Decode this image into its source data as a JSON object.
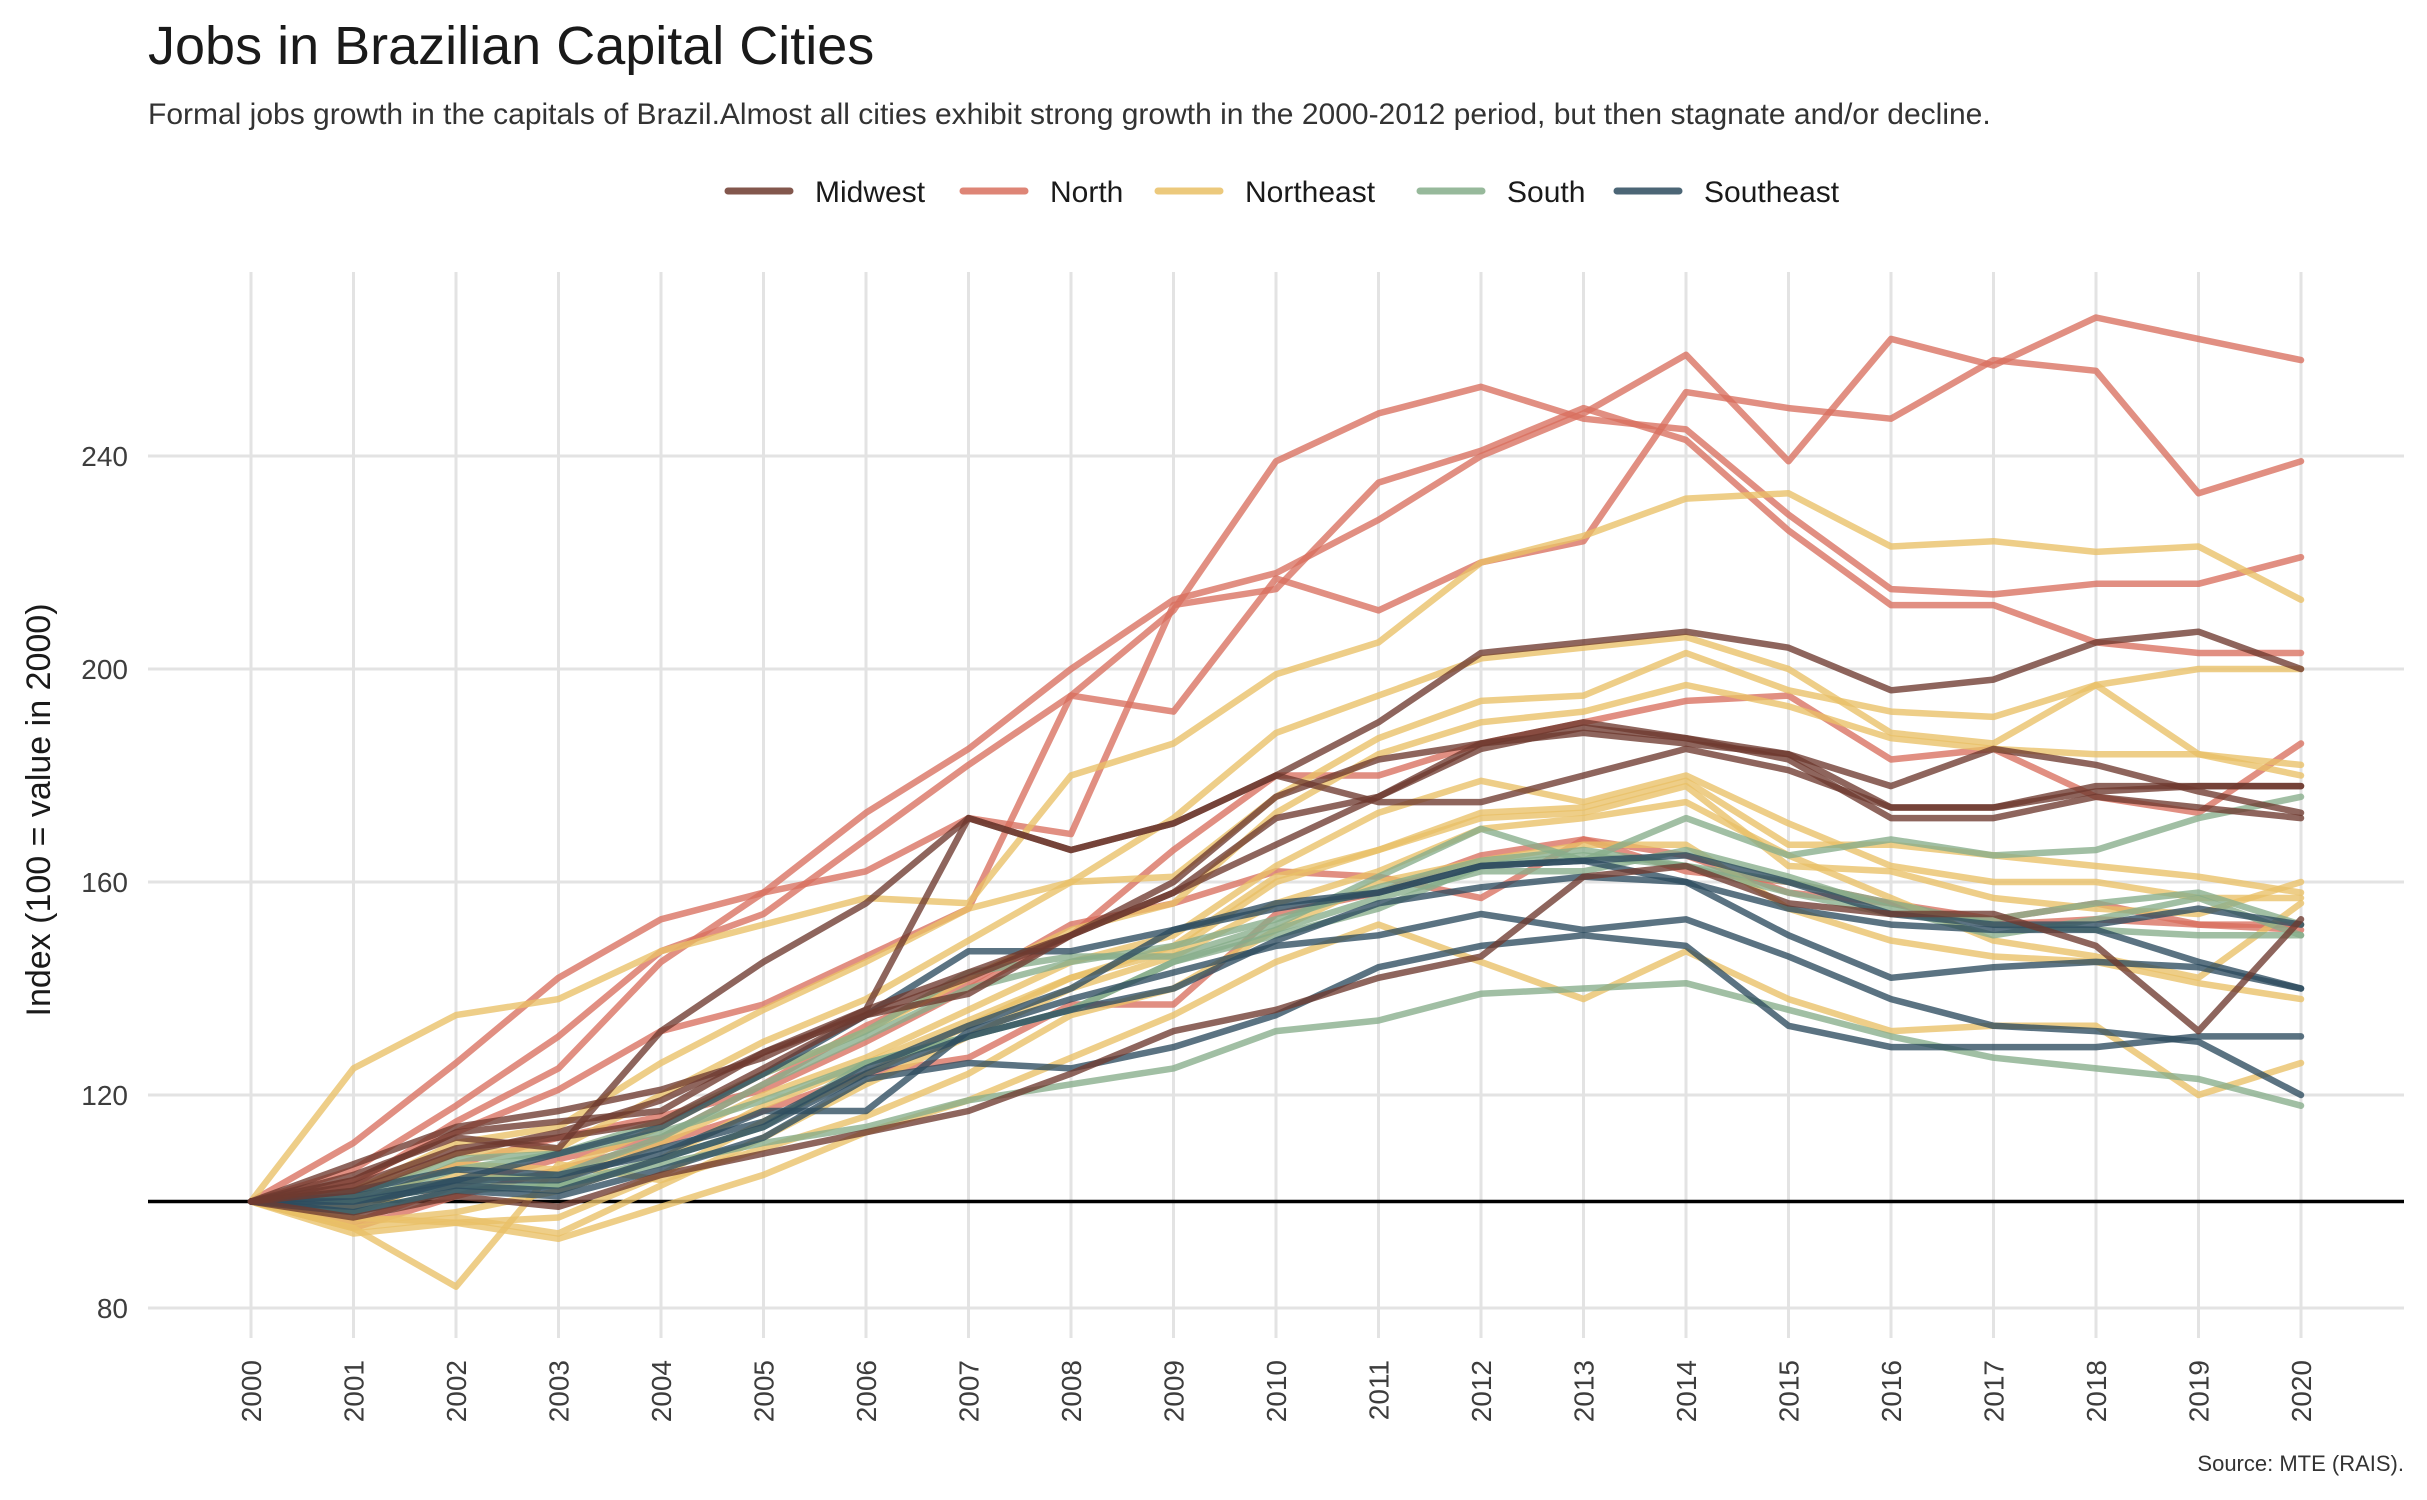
{
  "chart_data": {
    "type": "line",
    "title": "Jobs in Brazilian Capital Cities",
    "subtitle": "Formal jobs growth in the capitals of Brazil.Almost all cities exhibit strong growth in the 2000-2012 period, but then stagnate and/or decline.",
    "caption": "Source: MTE (RAIS).",
    "ylabel": "Index (100 = value in 2000)",
    "xlabel": "",
    "ylim": [
      80,
      270
    ],
    "yticks": [
      80,
      120,
      160,
      200,
      240
    ],
    "baseline": 100,
    "grid": true,
    "legend_position": "top",
    "x": [
      "2000",
      "2001",
      "2002",
      "2003",
      "2004",
      "2005",
      "2006",
      "2007",
      "2008",
      "2009",
      "2010",
      "2011",
      "2012",
      "2013",
      "2014",
      "2015",
      "2016",
      "2017",
      "2018",
      "2019",
      "2020"
    ],
    "legend": [
      {
        "name": "Midwest",
        "color": "#6e3a2f"
      },
      {
        "name": "North",
        "color": "#d9705f"
      },
      {
        "name": "Northeast",
        "color": "#e9c066"
      },
      {
        "name": "South",
        "color": "#86ad8a"
      },
      {
        "name": "Southeast",
        "color": "#2d4c5f"
      }
    ],
    "series": [
      {
        "region": "North",
        "values": [
          100,
          111,
          126,
          142,
          153,
          158,
          173,
          185,
          200,
          213,
          218,
          228,
          240,
          248,
          259,
          239,
          262,
          257,
          266,
          262,
          258
        ]
      },
      {
        "region": "North",
        "values": [
          100,
          106,
          118,
          131,
          147,
          154,
          168,
          182,
          195,
          211,
          239,
          248,
          253,
          247,
          245,
          229,
          215,
          214,
          216,
          216,
          221
        ]
      },
      {
        "region": "North",
        "values": [
          100,
          103,
          115,
          125,
          145,
          158,
          162,
          172,
          169,
          212,
          215,
          235,
          241,
          249,
          243,
          226,
          212,
          212,
          205,
          203,
          203
        ]
      },
      {
        "region": "North",
        "values": [
          100,
          104,
          113,
          121,
          132,
          137,
          146,
          155,
          195,
          192,
          217,
          211,
          220,
          224,
          252,
          249,
          247,
          258,
          256,
          233,
          239
        ]
      },
      {
        "region": "North",
        "values": [
          100,
          99,
          107,
          112,
          116,
          121,
          130,
          140,
          150,
          166,
          180,
          180,
          186,
          190,
          194,
          195,
          183,
          185,
          176,
          173,
          186
        ]
      },
      {
        "region": "North",
        "values": [
          100,
          96,
          103,
          108,
          112,
          122,
          133,
          141,
          152,
          156,
          162,
          161,
          157,
          168,
          162,
          160,
          156,
          153,
          156,
          152,
          152
        ]
      },
      {
        "region": "North",
        "values": [
          100,
          95,
          101,
          106,
          111,
          117,
          124,
          127,
          137,
          137,
          154,
          158,
          165,
          168,
          165,
          158,
          156,
          152,
          153,
          152,
          151
        ]
      },
      {
        "region": "Northeast",
        "values": [
          100,
          125,
          135,
          138,
          147,
          152,
          157,
          156,
          180,
          186,
          199,
          205,
          220,
          225,
          232,
          233,
          223,
          224,
          222,
          223,
          213
        ]
      },
      {
        "region": "Northeast",
        "values": [
          100,
          102,
          111,
          114,
          126,
          136,
          145,
          155,
          160,
          172,
          188,
          195,
          202,
          204,
          206,
          200,
          188,
          186,
          197,
          200,
          200
        ]
      },
      {
        "region": "Northeast",
        "values": [
          100,
          101,
          109,
          110,
          120,
          130,
          138,
          149,
          160,
          161,
          176,
          187,
          194,
          195,
          203,
          196,
          192,
          191,
          197,
          184,
          182
        ]
      },
      {
        "region": "Northeast",
        "values": [
          100,
          99,
          107,
          106,
          114,
          124,
          132,
          142,
          151,
          156,
          173,
          184,
          190,
          192,
          197,
          193,
          187,
          185,
          184,
          184,
          180
        ]
      },
      {
        "region": "Northeast",
        "values": [
          100,
          98,
          105,
          104,
          111,
          120,
          127,
          136,
          145,
          150,
          163,
          173,
          179,
          175,
          180,
          171,
          163,
          160,
          160,
          157,
          157
        ]
      },
      {
        "region": "Northeast",
        "values": [
          100,
          97,
          96,
          97,
          105,
          115,
          124,
          133,
          142,
          147,
          160,
          166,
          173,
          174,
          179,
          167,
          167,
          165,
          163,
          161,
          158
        ]
      },
      {
        "region": "Northeast",
        "values": [
          100,
          96,
          98,
          102,
          108,
          118,
          126,
          134,
          142,
          148,
          161,
          166,
          172,
          173,
          178,
          163,
          162,
          157,
          155,
          154,
          160
        ]
      },
      {
        "region": "Northeast",
        "values": [
          100,
          95,
          97,
          94,
          103,
          112,
          122,
          131,
          140,
          146,
          156,
          162,
          170,
          172,
          175,
          165,
          157,
          149,
          146,
          142,
          156
        ]
      },
      {
        "region": "Northeast",
        "values": [
          100,
          95,
          84,
          107,
          104,
          110,
          116,
          124,
          135,
          140,
          151,
          160,
          164,
          167,
          167,
          155,
          149,
          146,
          145,
          141,
          138
        ]
      },
      {
        "region": "Northeast",
        "values": [
          100,
          94,
          96,
          93,
          99,
          105,
          113,
          119,
          127,
          135,
          145,
          152,
          145,
          138,
          147,
          138,
          132,
          133,
          133,
          120,
          126
        ]
      },
      {
        "region": "South",
        "values": [
          100,
          100,
          106,
          109,
          115,
          124,
          132,
          143,
          146,
          146,
          152,
          161,
          170,
          164,
          172,
          165,
          168,
          165,
          166,
          172,
          176
        ]
      },
      {
        "region": "South",
        "values": [
          100,
          100,
          104,
          105,
          112,
          122,
          131,
          140,
          145,
          148,
          153,
          159,
          164,
          166,
          163,
          158,
          154,
          153,
          156,
          158,
          152
        ]
      },
      {
        "region": "South",
        "values": [
          100,
          98,
          102,
          103,
          108,
          114,
          126,
          131,
          136,
          145,
          151,
          157,
          162,
          162,
          166,
          161,
          155,
          150,
          153,
          157,
          150
        ]
      },
      {
        "region": "South",
        "values": [
          100,
          101,
          108,
          109,
          113,
          119,
          126,
          131,
          136,
          145,
          150,
          155,
          163,
          165,
          163,
          160,
          156,
          152,
          151,
          150,
          150
        ]
      },
      {
        "region": "South",
        "values": [
          100,
          100,
          103,
          103,
          107,
          111,
          114,
          119,
          122,
          125,
          132,
          134,
          139,
          140,
          141,
          136,
          131,
          127,
          125,
          123,
          118
        ]
      },
      {
        "region": "Southeast",
        "values": [
          100,
          102,
          106,
          105,
          109,
          117,
          117,
          132,
          138,
          143,
          148,
          150,
          154,
          151,
          153,
          146,
          138,
          133,
          132,
          130,
          120
        ]
      },
      {
        "region": "Southeast",
        "values": [
          100,
          101,
          104,
          104,
          110,
          115,
          125,
          133,
          140,
          151,
          156,
          158,
          163,
          164,
          165,
          160,
          154,
          152,
          152,
          155,
          152
        ]
      },
      {
        "region": "Southeast",
        "values": [
          100,
          100,
          103,
          102,
          108,
          114,
          124,
          131,
          136,
          140,
          149,
          156,
          159,
          161,
          160,
          150,
          142,
          144,
          145,
          144,
          140
        ]
      },
      {
        "region": "Southeast",
        "values": [
          100,
          98,
          102,
          101,
          106,
          112,
          123,
          126,
          125,
          129,
          135,
          144,
          148,
          150,
          148,
          133,
          129,
          129,
          129,
          131,
          131
        ]
      },
      {
        "region": "Southeast",
        "values": [
          100,
          99,
          104,
          109,
          114,
          124,
          135,
          147,
          147,
          151,
          155,
          158,
          163,
          164,
          160,
          155,
          152,
          151,
          151,
          145,
          140
        ]
      },
      {
        "region": "Midwest",
        "values": [
          100,
          107,
          114,
          117,
          121,
          127,
          136,
          172,
          166,
          171,
          180,
          190,
          203,
          205,
          207,
          204,
          196,
          198,
          205,
          207,
          200
        ]
      },
      {
        "region": "Midwest",
        "values": [
          100,
          105,
          112,
          110,
          132,
          145,
          156,
          172,
          166,
          171,
          180,
          175,
          175,
          180,
          185,
          181,
          174,
          174,
          178,
          178,
          178
        ]
      },
      {
        "region": "Midwest",
        "values": [
          100,
          103,
          110,
          112,
          115,
          125,
          135,
          139,
          150,
          160,
          176,
          183,
          186,
          190,
          187,
          184,
          178,
          185,
          182,
          177,
          173
        ]
      },
      {
        "region": "Midwest",
        "values": [
          100,
          104,
          113,
          115,
          117,
          128,
          135,
          142,
          150,
          158,
          172,
          176,
          186,
          188,
          186,
          184,
          174,
          174,
          177,
          178,
          178
        ]
      },
      {
        "region": "Midwest",
        "values": [
          100,
          97,
          101,
          99,
          105,
          109,
          113,
          117,
          124,
          132,
          136,
          142,
          146,
          161,
          163,
          156,
          154,
          154,
          148,
          132,
          153
        ]
      },
      {
        "region": "Midwest",
        "values": [
          100,
          102,
          109,
          113,
          119,
          128,
          136,
          143,
          150,
          158,
          167,
          176,
          185,
          189,
          187,
          183,
          172,
          172,
          176,
          174,
          172
        ]
      }
    ]
  }
}
